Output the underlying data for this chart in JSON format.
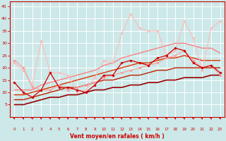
{
  "bg_color": "#cce8e8",
  "grid_color": "#ffffff",
  "xlabel": "Vent moyen/en rafales ( km/h )",
  "xlabel_color": "#cc0000",
  "tick_color": "#cc0000",
  "arrow_color": "#cc0000",
  "xlim": [
    -0.5,
    23.5
  ],
  "ylim": [
    0,
    47
  ],
  "yticks": [
    5,
    10,
    15,
    20,
    25,
    30,
    35,
    40,
    45
  ],
  "xticks": [
    0,
    1,
    2,
    3,
    4,
    5,
    6,
    7,
    8,
    9,
    10,
    11,
    12,
    13,
    14,
    15,
    16,
    17,
    18,
    19,
    20,
    21,
    22,
    23
  ],
  "series": [
    {
      "x": [
        0,
        1,
        2,
        3,
        4,
        5,
        6,
        7,
        8,
        9,
        10,
        11,
        12,
        13,
        14,
        15,
        16,
        17,
        18,
        19,
        20,
        21,
        22,
        23
      ],
      "y": [
        14,
        10,
        8,
        11,
        18,
        12,
        12,
        11,
        10,
        13,
        17,
        17,
        22,
        23,
        22,
        21,
        24,
        25,
        28,
        27,
        22,
        20,
        21,
        18
      ],
      "color": "#cc0000",
      "lw": 0.9,
      "marker": "D",
      "ms": 1.8,
      "zorder": 5
    },
    {
      "x": [
        0,
        1,
        2,
        3,
        4,
        5,
        6,
        7,
        8,
        9,
        10,
        11,
        12,
        13,
        14,
        15,
        16,
        17,
        18,
        19,
        20,
        21,
        22,
        23
      ],
      "y": [
        23,
        20,
        12,
        11,
        11,
        13,
        11,
        12,
        13,
        14,
        16,
        17,
        18,
        19,
        20,
        21,
        22,
        24,
        25,
        27,
        23,
        20,
        21,
        17
      ],
      "color": "#ff9999",
      "lw": 0.8,
      "marker": "D",
      "ms": 1.8,
      "zorder": 4
    },
    {
      "x": [
        0,
        1,
        2,
        3,
        4,
        5,
        6,
        7,
        8,
        9,
        10,
        11,
        12,
        13,
        14,
        15,
        16,
        17,
        18,
        19,
        20,
        21,
        22,
        23
      ],
      "y": [
        22,
        19,
        13,
        31,
        18,
        18,
        17,
        10,
        11,
        16,
        23,
        22,
        34,
        42,
        36,
        35,
        35,
        25,
        27,
        39,
        32,
        19,
        36,
        39
      ],
      "color": "#ffbbbb",
      "lw": 0.8,
      "marker": "D",
      "ms": 1.8,
      "zorder": 3
    },
    {
      "x": [
        0,
        1,
        2,
        3,
        4,
        5,
        6,
        7,
        8,
        9,
        10,
        11,
        12,
        13,
        14,
        15,
        16,
        17,
        18,
        19,
        20,
        21,
        22,
        23
      ],
      "y": [
        5,
        5,
        6,
        7,
        8,
        8,
        9,
        9,
        10,
        11,
        11,
        12,
        12,
        13,
        13,
        14,
        14,
        15,
        15,
        16,
        16,
        16,
        17,
        17
      ],
      "color": "#990000",
      "lw": 1.2,
      "marker": null,
      "ms": 0,
      "zorder": 2
    },
    {
      "x": [
        0,
        1,
        2,
        3,
        4,
        5,
        6,
        7,
        8,
        9,
        10,
        11,
        12,
        13,
        14,
        15,
        16,
        17,
        18,
        19,
        20,
        21,
        22,
        23
      ],
      "y": [
        7,
        7,
        8,
        9,
        10,
        11,
        12,
        12,
        13,
        14,
        15,
        15,
        16,
        17,
        17,
        18,
        19,
        19,
        20,
        20,
        20,
        20,
        20,
        20
      ],
      "color": "#bb2200",
      "lw": 1.0,
      "marker": null,
      "ms": 0,
      "zorder": 2
    },
    {
      "x": [
        0,
        1,
        2,
        3,
        4,
        5,
        6,
        7,
        8,
        9,
        10,
        11,
        12,
        13,
        14,
        15,
        16,
        17,
        18,
        19,
        20,
        21,
        22,
        23
      ],
      "y": [
        9,
        9,
        10,
        11,
        12,
        13,
        14,
        15,
        16,
        17,
        18,
        19,
        20,
        21,
        22,
        22,
        23,
        24,
        24,
        25,
        24,
        23,
        23,
        23
      ],
      "color": "#dd3300",
      "lw": 1.0,
      "marker": null,
      "ms": 0,
      "zorder": 2
    },
    {
      "x": [
        0,
        1,
        2,
        3,
        4,
        5,
        6,
        7,
        8,
        9,
        10,
        11,
        12,
        13,
        14,
        15,
        16,
        17,
        18,
        19,
        20,
        21,
        22,
        23
      ],
      "y": [
        11,
        11,
        11,
        13,
        14,
        15,
        16,
        17,
        18,
        19,
        21,
        22,
        24,
        25,
        26,
        27,
        28,
        29,
        30,
        30,
        29,
        28,
        28,
        26
      ],
      "color": "#ff7777",
      "lw": 0.9,
      "marker": null,
      "ms": 0,
      "zorder": 2
    }
  ]
}
